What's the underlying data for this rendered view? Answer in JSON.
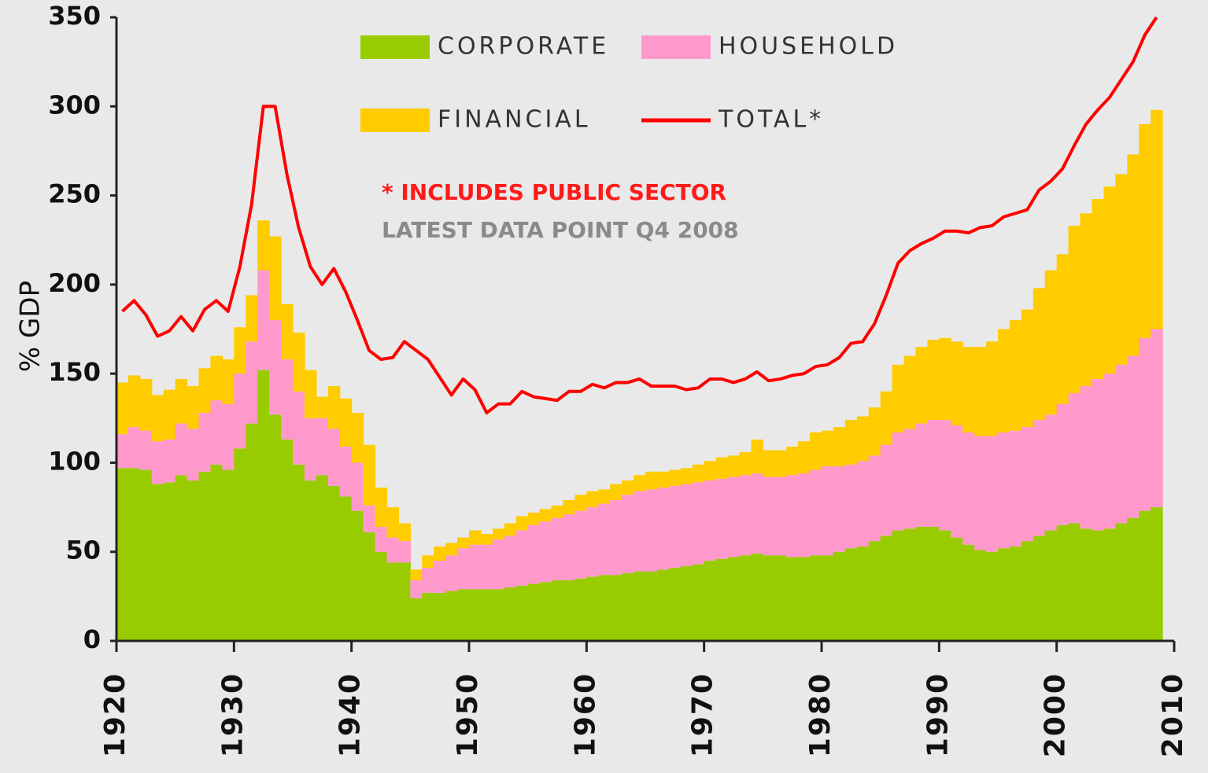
{
  "chart_data": {
    "type": "stacked_bar",
    "ylabel": "% GDP",
    "annotations": [
      {
        "text": "* INCLUDES PUBLIC SECTOR",
        "color": "#ff1a1a"
      },
      {
        "text": "LATEST DATA POINT Q4 2008",
        "color": "#8a8a8a"
      }
    ],
    "x": [
      1920,
      1921,
      1922,
      1923,
      1924,
      1925,
      1926,
      1927,
      1928,
      1929,
      1930,
      1931,
      1932,
      1933,
      1934,
      1935,
      1936,
      1937,
      1938,
      1939,
      1940,
      1941,
      1942,
      1943,
      1944,
      1945,
      1946,
      1947,
      1948,
      1949,
      1950,
      1951,
      1952,
      1953,
      1954,
      1955,
      1956,
      1957,
      1958,
      1959,
      1960,
      1961,
      1962,
      1963,
      1964,
      1965,
      1966,
      1967,
      1968,
      1969,
      1970,
      1971,
      1972,
      1973,
      1974,
      1975,
      1976,
      1977,
      1978,
      1979,
      1980,
      1981,
      1982,
      1983,
      1984,
      1985,
      1986,
      1987,
      1988,
      1989,
      1990,
      1991,
      1992,
      1993,
      1994,
      1995,
      1996,
      1997,
      1998,
      1999,
      2000,
      2001,
      2002,
      2003,
      2004,
      2005,
      2006,
      2007,
      2008
    ],
    "series": [
      {
        "name": "CORPORATE",
        "color": "#99cc00",
        "values": [
          97,
          97,
          96,
          88,
          89,
          93,
          90,
          95,
          99,
          96,
          108,
          122,
          152,
          127,
          113,
          99,
          90,
          93,
          87,
          81,
          73,
          61,
          50,
          44,
          44,
          24,
          27,
          27,
          28,
          29,
          29,
          29,
          29,
          30,
          31,
          32,
          33,
          34,
          34,
          35,
          36,
          37,
          37,
          38,
          39,
          39,
          40,
          41,
          42,
          43,
          45,
          46,
          47,
          48,
          49,
          48,
          48,
          47,
          47,
          48,
          48,
          50,
          52,
          53,
          56,
          59,
          62,
          63,
          64,
          64,
          62,
          58,
          54,
          51,
          50,
          52,
          53,
          56,
          59,
          62,
          65,
          66,
          63,
          62,
          63,
          66,
          69,
          73,
          75
        ]
      },
      {
        "name": "HOUSEHOLD",
        "color": "#ff99cc",
        "values": [
          19,
          23,
          22,
          24,
          24,
          29,
          29,
          33,
          36,
          37,
          42,
          46,
          56,
          53,
          45,
          41,
          35,
          32,
          32,
          28,
          27,
          15,
          14,
          14,
          12,
          10,
          14,
          18,
          20,
          23,
          25,
          25,
          28,
          29,
          31,
          33,
          34,
          35,
          37,
          38,
          39,
          40,
          42,
          44,
          45,
          46,
          46,
          46,
          46,
          46,
          45,
          45,
          45,
          45,
          45,
          44,
          44,
          46,
          47,
          48,
          50,
          48,
          47,
          48,
          48,
          51,
          55,
          56,
          58,
          60,
          62,
          63,
          63,
          64,
          65,
          65,
          65,
          64,
          65,
          65,
          68,
          73,
          80,
          85,
          87,
          89,
          91,
          97,
          100
        ]
      },
      {
        "name": "FINANCIAL",
        "color": "#ffcc00",
        "values": [
          29,
          29,
          29,
          26,
          28,
          25,
          24,
          25,
          25,
          25,
          26,
          26,
          28,
          47,
          31,
          33,
          27,
          12,
          24,
          27,
          28,
          34,
          22,
          17,
          10,
          6,
          7,
          8,
          7,
          6,
          8,
          6,
          6,
          7,
          8,
          7,
          7,
          7,
          8,
          9,
          9,
          8,
          9,
          8,
          9,
          10,
          9,
          9,
          9,
          10,
          11,
          12,
          12,
          13,
          19,
          15,
          15,
          16,
          18,
          21,
          20,
          22,
          25,
          25,
          27,
          30,
          38,
          41,
          43,
          45,
          46,
          47,
          48,
          50,
          53,
          58,
          62,
          66,
          74,
          81,
          84,
          94,
          97,
          101,
          105,
          107,
          113,
          120,
          123
        ]
      },
      {
        "name": "TOTAL*",
        "color": "#ff0000",
        "type": "line",
        "values": [
          185,
          191,
          183,
          171,
          174,
          182,
          174,
          186,
          191,
          185,
          210,
          245,
          300,
          300,
          262,
          232,
          210,
          200,
          209,
          196,
          180,
          163,
          158,
          159,
          168,
          163,
          158,
          148,
          138,
          147,
          141,
          128,
          133,
          133,
          140,
          137,
          136,
          135,
          140,
          140,
          144,
          142,
          145,
          145,
          147,
          143,
          143,
          143,
          141,
          142,
          147,
          147,
          145,
          147,
          151,
          146,
          147,
          149,
          150,
          154,
          155,
          159,
          167,
          168,
          178,
          194,
          212,
          219,
          223,
          226,
          230,
          230,
          229,
          232,
          233,
          238,
          240,
          242,
          253,
          258,
          265,
          278,
          290,
          298,
          305,
          315,
          325,
          340,
          350
        ]
      }
    ],
    "xlim": [
      1920,
      2010
    ],
    "xticks": [
      1920,
      1930,
      1940,
      1950,
      1960,
      1970,
      1980,
      1990,
      2000,
      2010
    ],
    "ylim": [
      0,
      350
    ],
    "yticks": [
      0,
      50,
      100,
      150,
      200,
      250,
      300,
      350
    ]
  }
}
